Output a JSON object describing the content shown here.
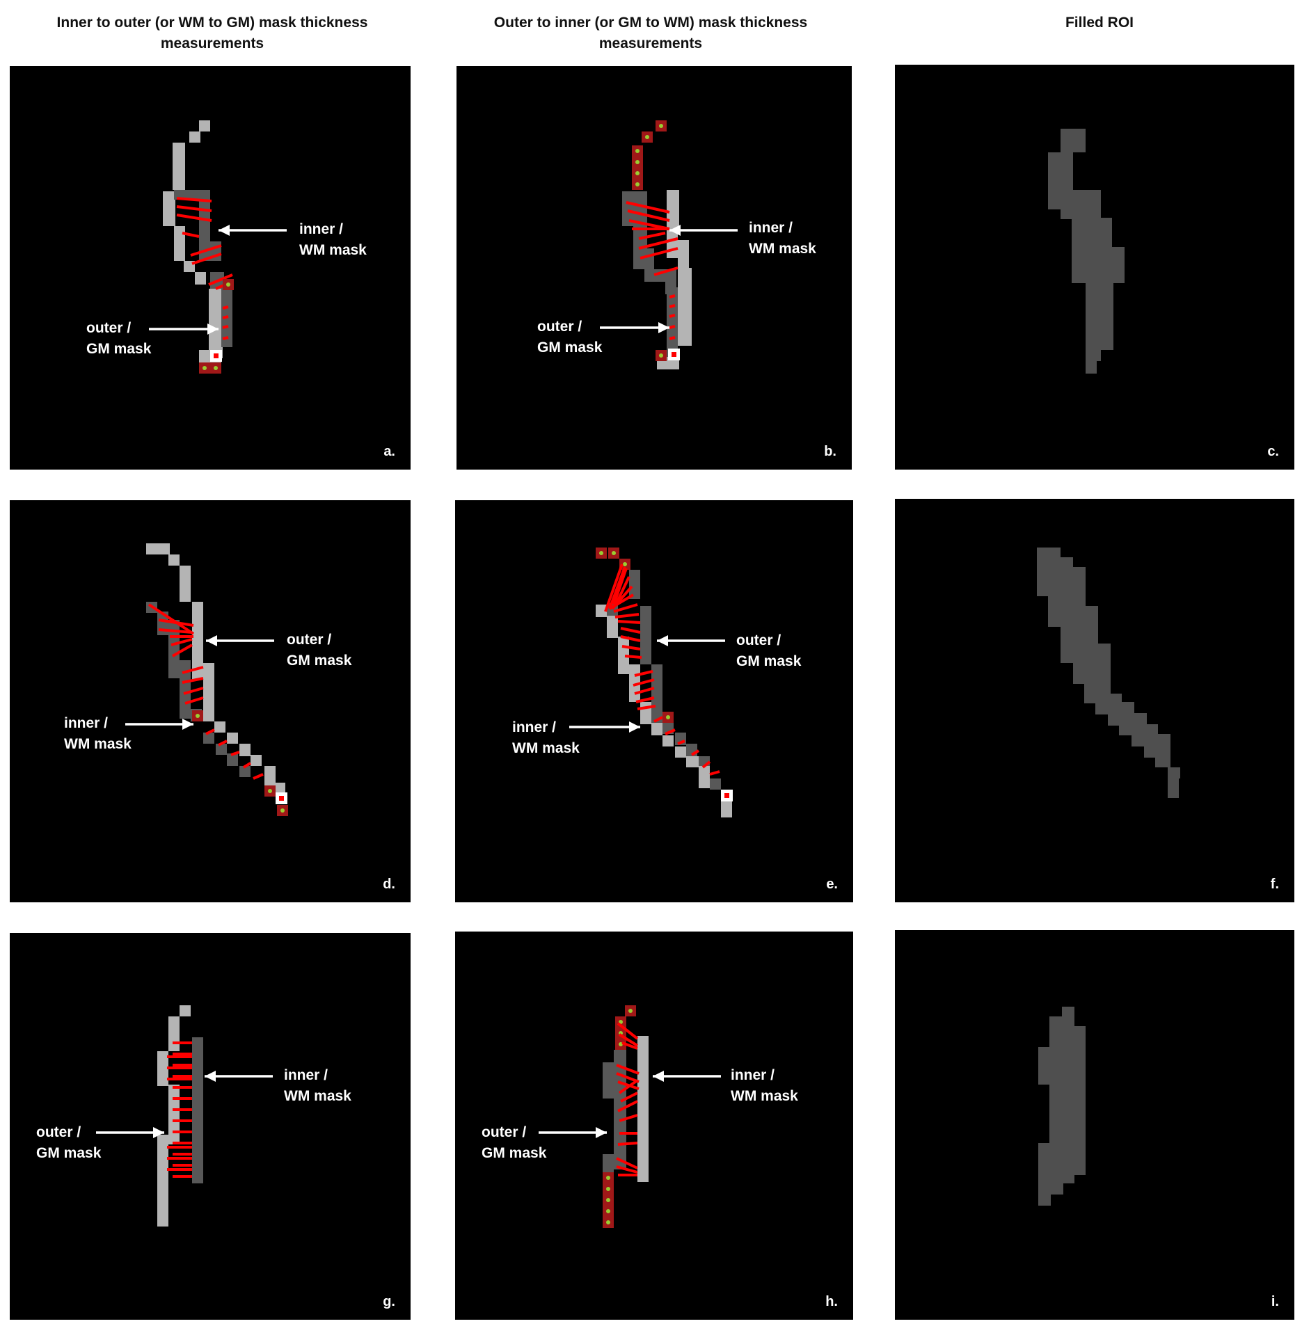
{
  "headers": {
    "col1": "Inner to outer (or WM to GM) mask thickness measurements",
    "col2": "Outer to inner (or GM to WM) mask thickness measurements",
    "col3": "Filled ROI"
  },
  "panels": [
    {
      "letter": "a.",
      "labels": [
        "inner /",
        "WM mask",
        "outer /",
        "GM mask"
      ]
    },
    {
      "letter": "b.",
      "labels": [
        "inner /",
        "WM mask",
        "outer /",
        "GM mask"
      ]
    },
    {
      "letter": "c."
    },
    {
      "letter": "d.",
      "labels": [
        "outer /",
        "GM mask",
        "inner /",
        "WM mask"
      ]
    },
    {
      "letter": "e.",
      "labels": [
        "outer /",
        "GM mask",
        "inner /",
        "WM mask"
      ]
    },
    {
      "letter": "f."
    },
    {
      "letter": "g.",
      "labels": [
        "inner /",
        "WM mask",
        "outer /",
        "GM mask"
      ]
    },
    {
      "letter": "h.",
      "labels": [
        "inner /",
        "WM mask",
        "outer /",
        "GM mask"
      ]
    },
    {
      "letter": "i."
    }
  ],
  "colors": {
    "background": "#000000",
    "gm_mask": "#b4b4b4",
    "wm_mask": "#585858",
    "filled_roi": "#4f4f4f",
    "measurement_line": "#ff0000",
    "voxel_marker": "#a01818",
    "voxel_dot": "#9acd32"
  }
}
